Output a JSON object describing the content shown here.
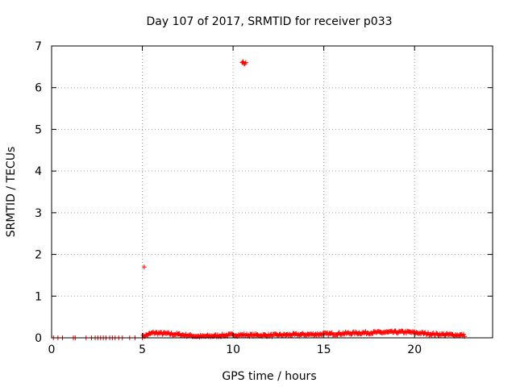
{
  "chart_data": {
    "type": "scatter",
    "title": "Day 107 of 2017, SRMTID for receiver p033",
    "xlabel": "GPS time / hours",
    "ylabel": "SRMTID / TECUs",
    "xlim": [
      0,
      24.3
    ],
    "ylim": [
      0,
      7
    ],
    "xticks": [
      0,
      5,
      10,
      15,
      20
    ],
    "yticks": [
      0,
      1,
      2,
      3,
      4,
      5,
      6,
      7
    ],
    "grid": true,
    "marker": "+",
    "color": "#ff0000",
    "series": [
      {
        "name": "SRMTID",
        "sparse_points": [
          {
            "x": 0.1,
            "y": 0.0
          },
          {
            "x": 0.35,
            "y": 0.0
          },
          {
            "x": 0.6,
            "y": 0.0
          },
          {
            "x": 1.2,
            "y": 0.0
          },
          {
            "x": 1.3,
            "y": 0.0
          },
          {
            "x": 1.9,
            "y": 0.0
          },
          {
            "x": 2.2,
            "y": 0.0
          },
          {
            "x": 2.4,
            "y": 0.0
          },
          {
            "x": 2.55,
            "y": 0.0
          },
          {
            "x": 2.7,
            "y": 0.0
          },
          {
            "x": 2.85,
            "y": 0.0
          },
          {
            "x": 3.0,
            "y": 0.0
          },
          {
            "x": 3.2,
            "y": 0.0
          },
          {
            "x": 3.35,
            "y": 0.0
          },
          {
            "x": 3.5,
            "y": 0.0
          },
          {
            "x": 3.7,
            "y": 0.0
          },
          {
            "x": 3.9,
            "y": 0.0
          },
          {
            "x": 4.3,
            "y": 0.0
          },
          {
            "x": 4.6,
            "y": 0.0
          },
          {
            "x": 5.1,
            "y": 1.7
          },
          {
            "x": 10.5,
            "y": 6.6
          },
          {
            "x": 10.6,
            "y": 6.58
          },
          {
            "x": 10.55,
            "y": 6.62
          },
          {
            "x": 10.65,
            "y": 6.57
          },
          {
            "x": 10.7,
            "y": 6.6
          }
        ],
        "dense_band": {
          "x_start": 5.0,
          "x_end": 22.8,
          "x_step": 0.05,
          "baseline": 0.06,
          "envelope": [
            {
              "x": 5.0,
              "y": 0.03
            },
            {
              "x": 5.6,
              "y": 0.12
            },
            {
              "x": 7.0,
              "y": 0.08
            },
            {
              "x": 8.2,
              "y": 0.03
            },
            {
              "x": 10.0,
              "y": 0.07
            },
            {
              "x": 12.0,
              "y": 0.06
            },
            {
              "x": 15.0,
              "y": 0.09
            },
            {
              "x": 17.2,
              "y": 0.12
            },
            {
              "x": 19.5,
              "y": 0.14
            },
            {
              "x": 21.0,
              "y": 0.09
            },
            {
              "x": 22.8,
              "y": 0.06
            }
          ],
          "noise": 0.03
        }
      }
    ]
  }
}
